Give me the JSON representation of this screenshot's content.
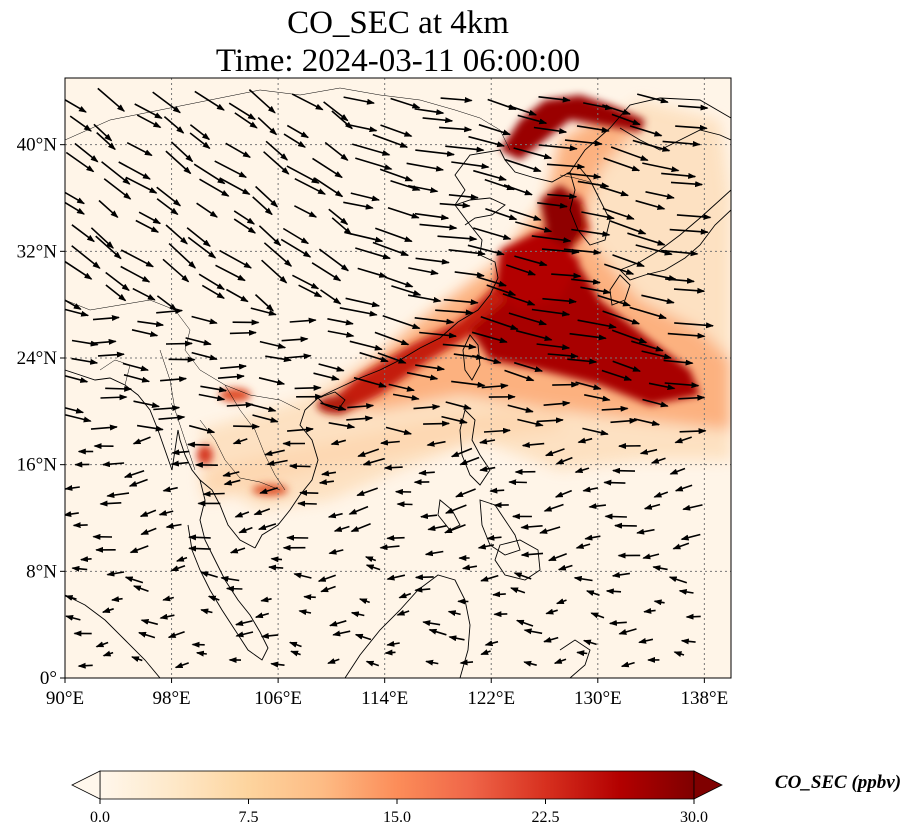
{
  "title": {
    "line1": "CO_SEC at 4km",
    "line2": "Time: 2024-03-11 06:00:00"
  },
  "map": {
    "lon_range": [
      90,
      140
    ],
    "lat_range": [
      0,
      45
    ],
    "x_ticks": [
      "90°E",
      "98°E",
      "106°E",
      "114°E",
      "122°E",
      "130°E",
      "138°E"
    ],
    "y_ticks": [
      "0°",
      "8°N",
      "16°N",
      "24°N",
      "32°N",
      "40°N"
    ],
    "gridlines": true,
    "colormap": "OrRd",
    "vector_color": "#000000"
  },
  "colorbar": {
    "label": "CO_SEC (ppbv)",
    "ticks": [
      "0.0",
      "7.5",
      "15.0",
      "22.5",
      "30.0"
    ],
    "min": 0,
    "max": 30,
    "extend": "both",
    "colors": [
      "#fff7ec",
      "#fee8c8",
      "#fdd49e",
      "#fdbb84",
      "#fc8d59",
      "#ef6548",
      "#d7301f",
      "#b30000",
      "#7f0000"
    ]
  }
}
